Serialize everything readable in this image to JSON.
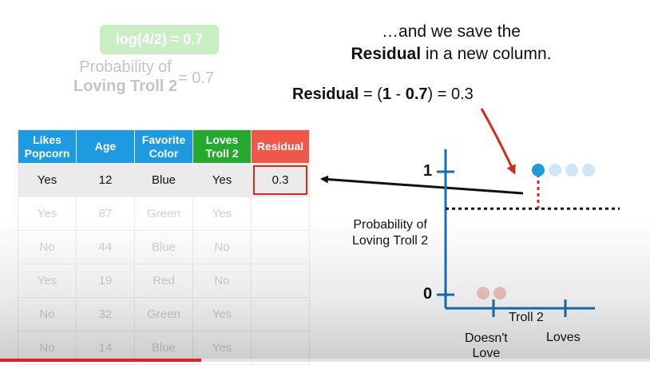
{
  "log_badge": "log(4/2) = 0.7",
  "faded_probability": {
    "line1": "Probability of",
    "line2": "Loving Troll 2",
    "value": "= 0.7"
  },
  "caption": {
    "line1": "…and we save the",
    "line2_bold": "Residual",
    "line2_rest": " in a new column."
  },
  "formula": {
    "label": "Residual",
    "eq": " = (",
    "one": "1",
    "minus": " - ",
    "pred": "0.7",
    "close": ") = 0.3"
  },
  "table": {
    "headers": [
      "Likes Popcorn",
      "Age",
      "Favorite Color",
      "Loves Troll 2",
      "Residual"
    ],
    "rows": [
      [
        "Yes",
        "12",
        "Blue",
        "Yes",
        "0.3"
      ],
      [
        "Yes",
        "87",
        "Green",
        "Yes",
        ""
      ],
      [
        "No",
        "44",
        "Blue",
        "No",
        ""
      ],
      [
        "Yes",
        "19",
        "Red",
        "No",
        ""
      ],
      [
        "No",
        "32",
        "Green",
        "Yes",
        ""
      ],
      [
        "No",
        "14",
        "Blue",
        "Yes",
        ""
      ]
    ]
  },
  "graph": {
    "y_label_line1": "Probability of",
    "y_label_line2": "Loving Troll 2",
    "y_tick_top": "1",
    "y_tick_bottom": "0",
    "x_label": "Troll 2",
    "x_cat1_line1": "Doesn't",
    "x_cat1_line2": "Love",
    "x_cat2": "Loves",
    "predicted_probability": 0.7,
    "loves_points": 4,
    "doesnt_love_points": 2
  },
  "colors": {
    "blue": "#1e9ae0",
    "green": "#27a82e",
    "red": "#ef5848",
    "axis": "#1670b8"
  },
  "video_progress": 0.31
}
